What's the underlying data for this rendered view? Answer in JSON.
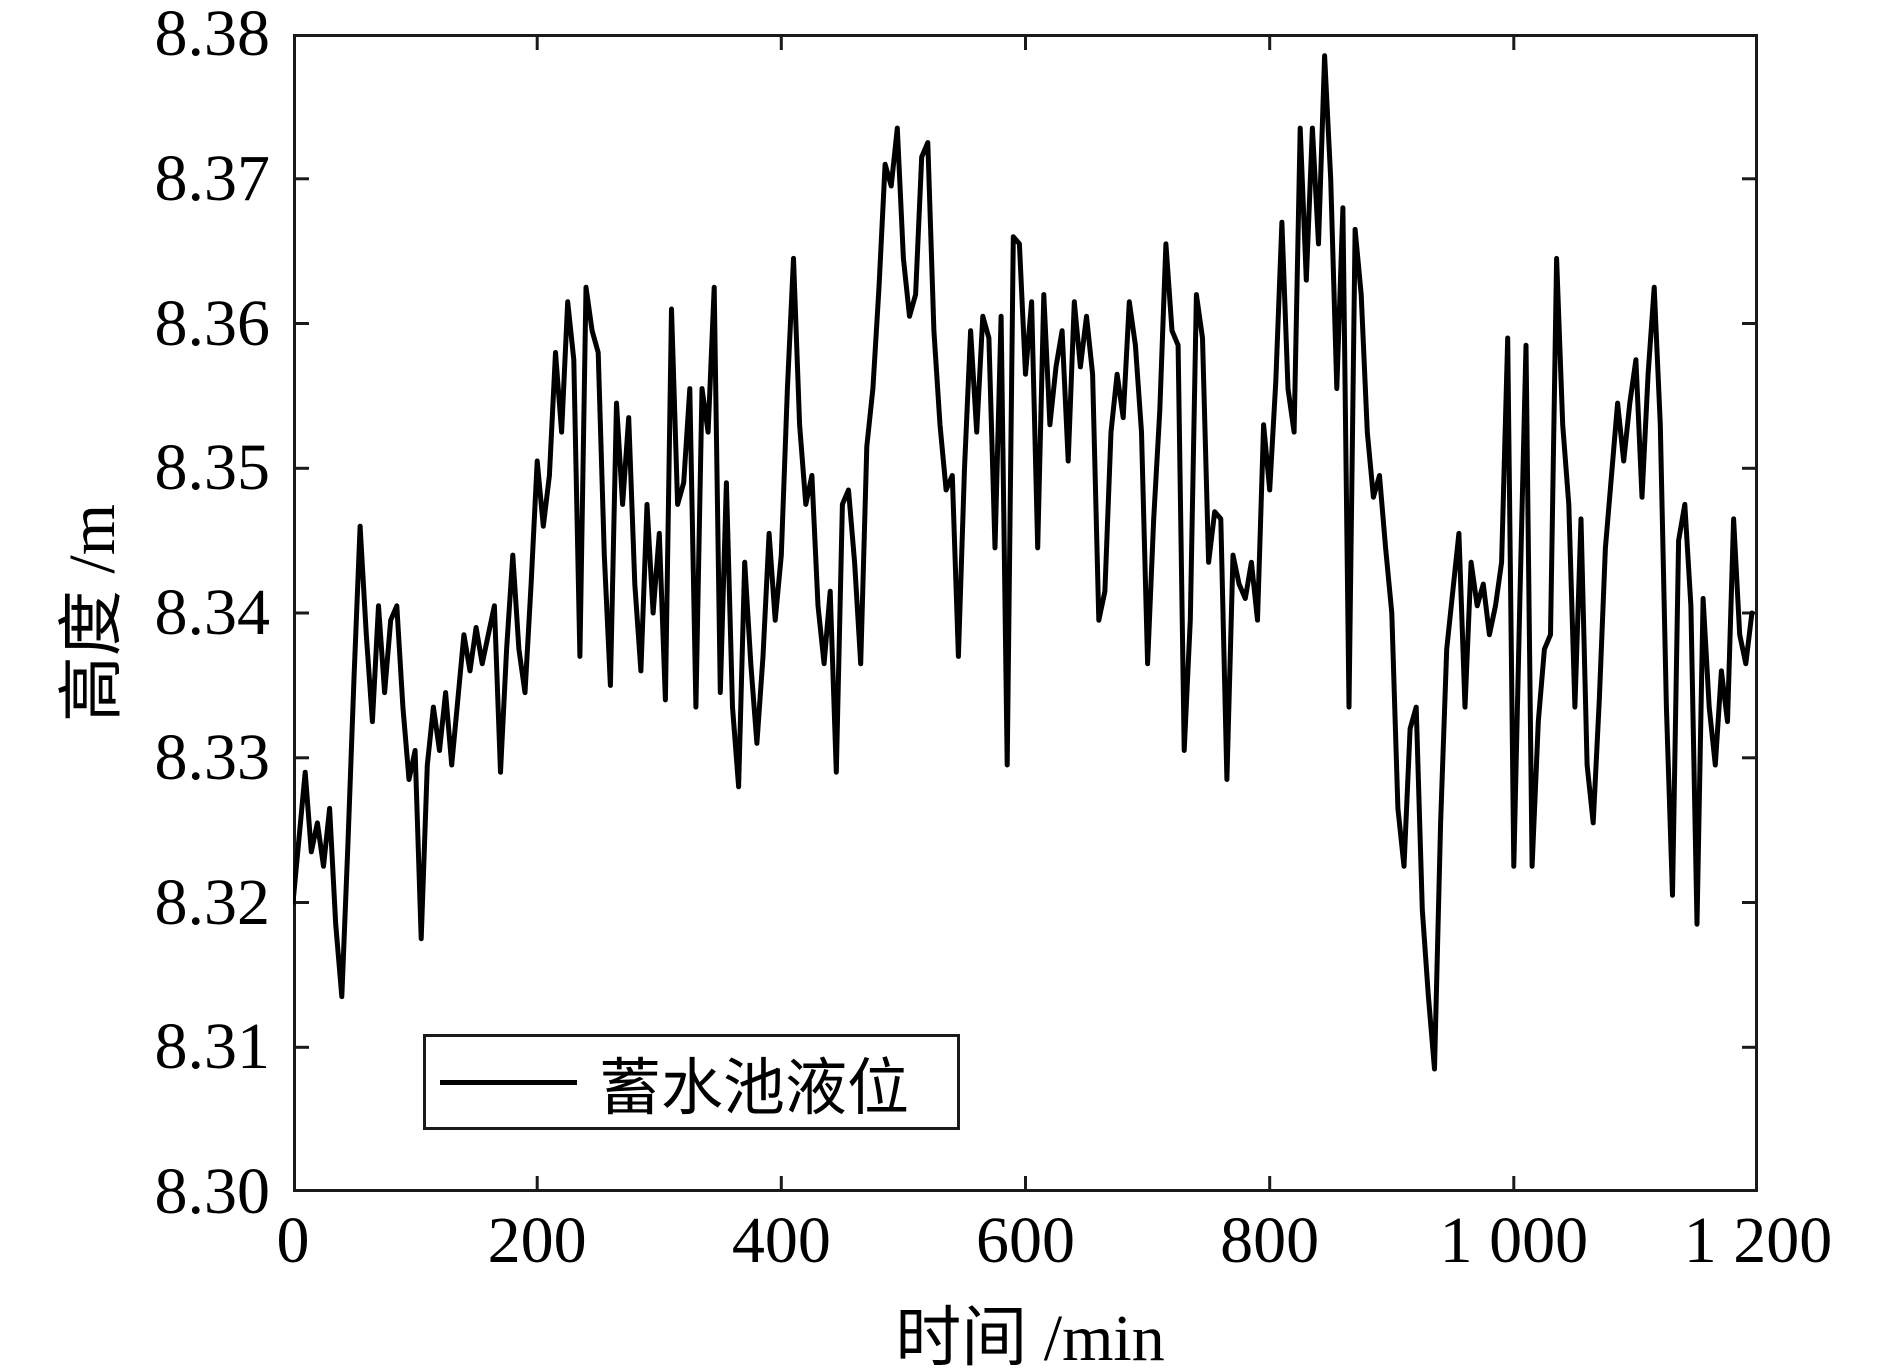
{
  "figure": {
    "background": "#ffffff",
    "axis_color": "#1a1a1a",
    "text_color": "#000000"
  },
  "chart_data": {
    "type": "line",
    "title": "",
    "xlabel": "时间 /min",
    "ylabel": "高度 /m",
    "xlim": [
      0,
      1200
    ],
    "ylim": [
      8.3,
      8.38
    ],
    "grid": false,
    "x_ticks": [
      0,
      200,
      400,
      600,
      800,
      1000,
      1200
    ],
    "x_tick_labels": [
      "0",
      "200",
      "400",
      "600",
      "800",
      "1 000",
      "1 200"
    ],
    "y_ticks": [
      8.3,
      8.31,
      8.32,
      8.33,
      8.34,
      8.35,
      8.36,
      8.37,
      8.38
    ],
    "y_tick_labels": [
      "8.30",
      "8.31",
      "8.32",
      "8.33",
      "8.34",
      "8.35",
      "8.36",
      "8.37",
      "8.38"
    ],
    "legend": {
      "position": "bottom-left-inside",
      "entries": [
        {
          "label": "蓄水池液位",
          "color": "#000000",
          "style": "solid"
        }
      ]
    },
    "series": [
      {
        "name": "蓄水池液位",
        "color": "#000000",
        "line_width": 5,
        "x": [
          0,
          5,
          10,
          15,
          20,
          25,
          30,
          35,
          40,
          45,
          50,
          55,
          60,
          65,
          70,
          75,
          80,
          85,
          90,
          95,
          100,
          105,
          110,
          115,
          120,
          125,
          130,
          135,
          140,
          145,
          150,
          155,
          160,
          165,
          170,
          175,
          180,
          185,
          190,
          195,
          200,
          205,
          210,
          215,
          220,
          225,
          230,
          235,
          240,
          245,
          250,
          255,
          260,
          265,
          270,
          275,
          280,
          285,
          290,
          295,
          300,
          305,
          310,
          315,
          320,
          325,
          330,
          335,
          340,
          345,
          350,
          355,
          360,
          365,
          370,
          375,
          380,
          385,
          390,
          395,
          400,
          405,
          410,
          415,
          420,
          425,
          430,
          435,
          440,
          445,
          450,
          455,
          460,
          465,
          470,
          475,
          480,
          485,
          490,
          495,
          500,
          505,
          510,
          515,
          520,
          525,
          530,
          535,
          540,
          545,
          550,
          555,
          560,
          565,
          570,
          575,
          580,
          585,
          590,
          595,
          600,
          605,
          610,
          615,
          620,
          625,
          630,
          635,
          640,
          645,
          650,
          655,
          660,
          665,
          670,
          675,
          680,
          685,
          690,
          695,
          700,
          705,
          710,
          715,
          720,
          725,
          730,
          735,
          740,
          745,
          750,
          755,
          760,
          765,
          770,
          775,
          780,
          785,
          790,
          795,
          800,
          805,
          810,
          815,
          820,
          825,
          830,
          835,
          840,
          845,
          850,
          855,
          860,
          865,
          870,
          875,
          880,
          885,
          890,
          895,
          900,
          905,
          910,
          915,
          920,
          925,
          930,
          935,
          940,
          945,
          950,
          955,
          960,
          965,
          970,
          975,
          980,
          985,
          990,
          995,
          1000,
          1005,
          1010,
          1015,
          1020,
          1025,
          1030,
          1035,
          1040,
          1045,
          1050,
          1055,
          1060,
          1065,
          1070,
          1075,
          1080,
          1085,
          1090,
          1095,
          1100,
          1105,
          1110,
          1115,
          1120,
          1125,
          1130,
          1135,
          1140,
          1145,
          1150,
          1155,
          1160,
          1165,
          1170,
          1175,
          1180,
          1185,
          1190,
          1195
        ],
        "y": [
          8.32,
          8.3245,
          8.329,
          8.3235,
          8.3255,
          8.3225,
          8.3265,
          8.3185,
          8.3135,
          8.324,
          8.3355,
          8.346,
          8.3385,
          8.3325,
          8.3405,
          8.3345,
          8.3395,
          8.3405,
          8.3335,
          8.3285,
          8.3305,
          8.3175,
          8.3295,
          8.3335,
          8.3305,
          8.3345,
          8.3295,
          8.334,
          8.3385,
          8.336,
          8.339,
          8.3365,
          8.3385,
          8.3405,
          8.329,
          8.3375,
          8.344,
          8.3375,
          8.3345,
          8.342,
          8.3505,
          8.346,
          8.3495,
          8.358,
          8.3525,
          8.3615,
          8.3575,
          8.337,
          8.3625,
          8.3595,
          8.358,
          8.344,
          8.335,
          8.3545,
          8.3475,
          8.3535,
          8.342,
          8.336,
          8.3475,
          8.34,
          8.3455,
          8.334,
          8.361,
          8.3475,
          8.349,
          8.3555,
          8.3335,
          8.3555,
          8.3525,
          8.3625,
          8.3345,
          8.349,
          8.3335,
          8.328,
          8.3435,
          8.3365,
          8.331,
          8.337,
          8.3455,
          8.3395,
          8.344,
          8.3555,
          8.3645,
          8.353,
          8.3475,
          8.3495,
          8.3405,
          8.3365,
          8.3415,
          8.329,
          8.3475,
          8.3485,
          8.3435,
          8.3365,
          8.3515,
          8.3555,
          8.3625,
          8.371,
          8.3695,
          8.3735,
          8.3645,
          8.3605,
          8.362,
          8.3715,
          8.3725,
          8.3595,
          8.353,
          8.3485,
          8.3495,
          8.337,
          8.35,
          8.3595,
          8.3525,
          8.3605,
          8.359,
          8.3445,
          8.3605,
          8.3295,
          8.366,
          8.3655,
          8.3565,
          8.3615,
          8.3445,
          8.362,
          8.353,
          8.357,
          8.3595,
          8.3505,
          8.3615,
          8.357,
          8.3605,
          8.3565,
          8.3395,
          8.3415,
          8.3525,
          8.3565,
          8.3535,
          8.3615,
          8.3585,
          8.3525,
          8.3365,
          8.3465,
          8.354,
          8.3655,
          8.3595,
          8.3585,
          8.3305,
          8.3395,
          8.362,
          8.359,
          8.3435,
          8.347,
          8.3465,
          8.3285,
          8.344,
          8.342,
          8.341,
          8.3435,
          8.3395,
          8.353,
          8.3485,
          8.356,
          8.367,
          8.3555,
          8.3525,
          8.3735,
          8.363,
          8.3735,
          8.3655,
          8.3785,
          8.37,
          8.3555,
          8.368,
          8.3335,
          8.3665,
          8.362,
          8.3525,
          8.348,
          8.3495,
          8.3445,
          8.34,
          8.3265,
          8.3225,
          8.332,
          8.3335,
          8.3195,
          8.3135,
          8.3085,
          8.3255,
          8.3375,
          8.3415,
          8.3455,
          8.3335,
          8.3435,
          8.3405,
          8.342,
          8.3385,
          8.3405,
          8.3435,
          8.359,
          8.3225,
          8.341,
          8.3585,
          8.3225,
          8.3325,
          8.3375,
          8.3385,
          8.3645,
          8.353,
          8.3475,
          8.3335,
          8.3465,
          8.3295,
          8.3255,
          8.334,
          8.3445,
          8.3495,
          8.3545,
          8.3505,
          8.3545,
          8.3575,
          8.348,
          8.3565,
          8.3625,
          8.353,
          8.3335,
          8.3205,
          8.345,
          8.3475,
          8.3405,
          8.3185,
          8.341,
          8.3335,
          8.3295,
          8.336,
          8.3325,
          8.3465,
          8.3385,
          8.3365,
          8.34
        ]
      }
    ]
  }
}
